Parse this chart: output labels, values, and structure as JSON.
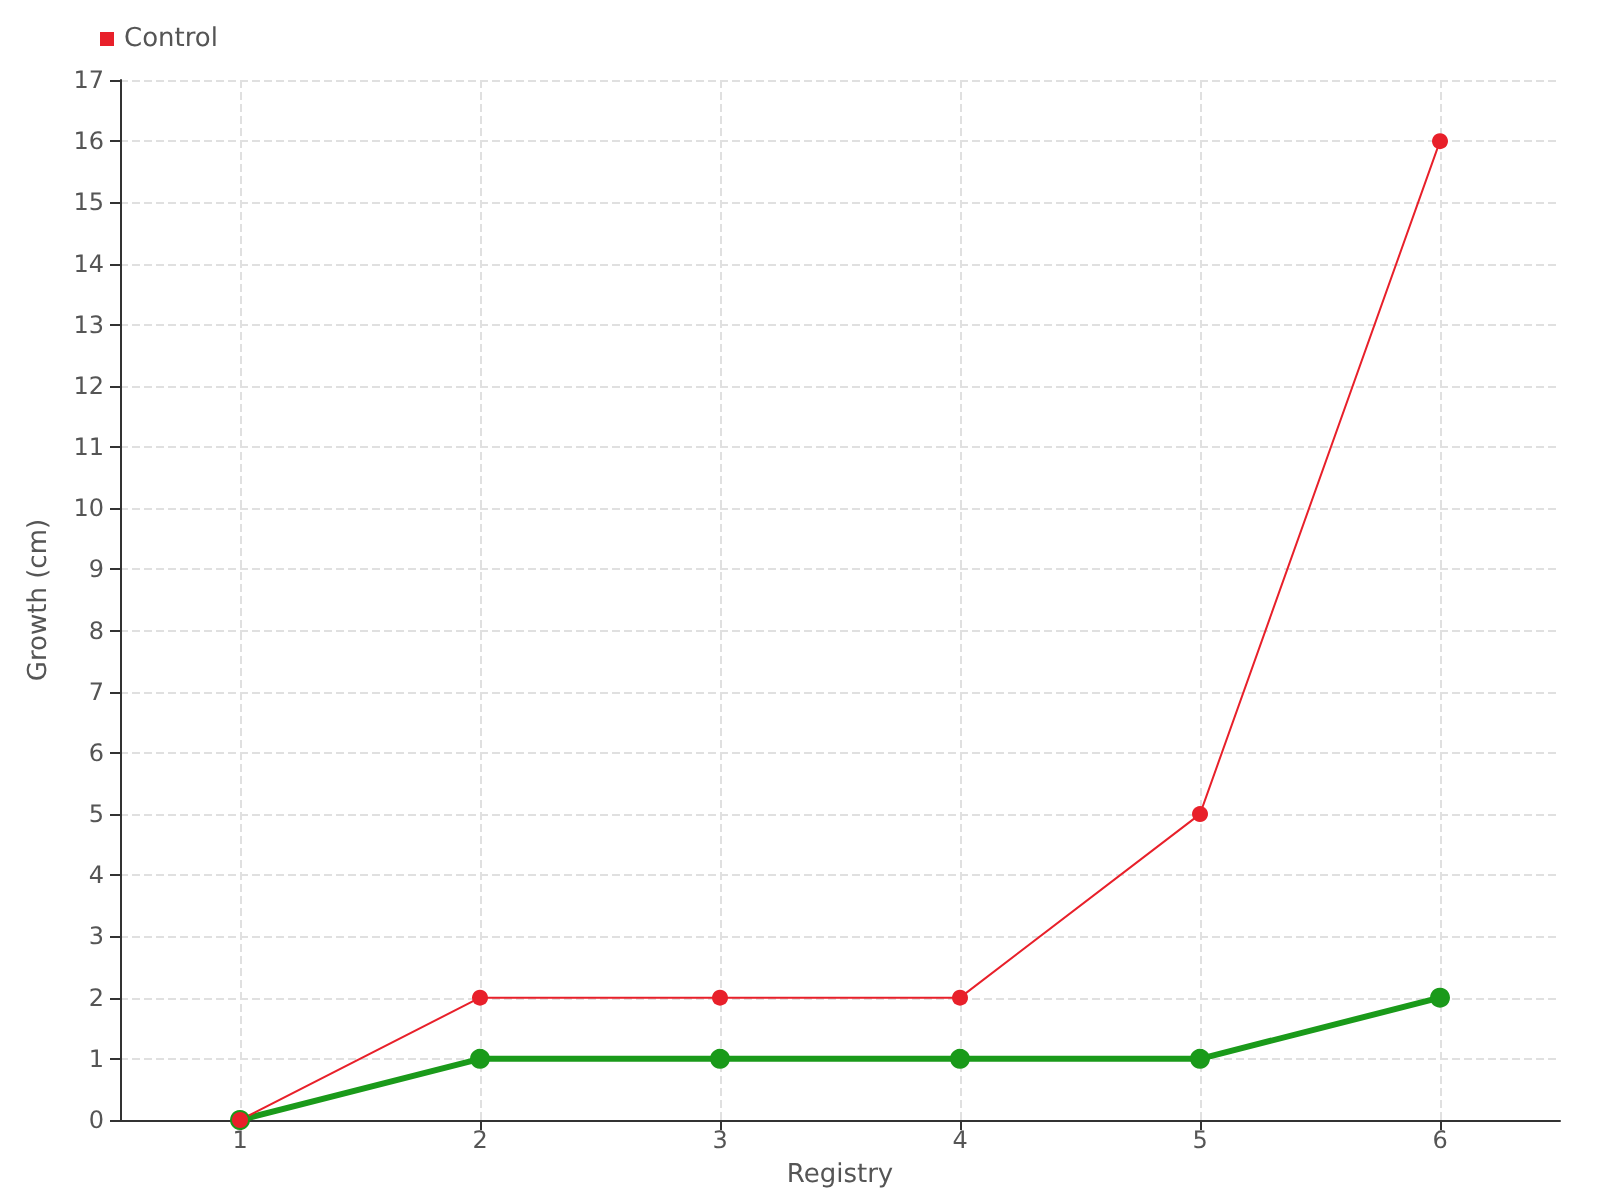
{
  "chart_data": {
    "type": "line",
    "xlabel": "Registry",
    "ylabel": "Growth (cm)",
    "x": [
      1,
      2,
      3,
      4,
      5,
      6
    ],
    "xlim": [
      0.5,
      6.5
    ],
    "xticks": [
      1,
      2,
      3,
      4,
      5,
      6
    ],
    "ylim": [
      0,
      17
    ],
    "yticks": [
      0,
      1,
      2,
      3,
      4,
      5,
      6,
      7,
      8,
      9,
      10,
      11,
      12,
      13,
      14,
      15,
      16,
      17
    ],
    "grid": true,
    "legend": "top left",
    "marker": "circle",
    "line_style": "solid",
    "series": [
      {
        "color": "#1a9a1a",
        "values": [
          0,
          1,
          1,
          1,
          1,
          2
        ]
      },
      {
        "name": "Control",
        "color": "#e8202a",
        "values": [
          0,
          2,
          2,
          2,
          5,
          16
        ]
      }
    ]
  }
}
